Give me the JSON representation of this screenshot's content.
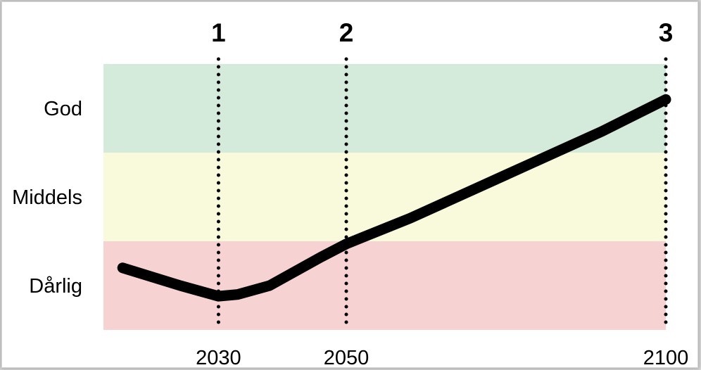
{
  "chart_data": {
    "type": "line",
    "title": "",
    "xlabel": "",
    "ylabel": "",
    "xlim": [
      2012,
      2100
    ],
    "x_ticks": [
      {
        "value": 2030,
        "label": "2030"
      },
      {
        "value": 2050,
        "label": "2050"
      },
      {
        "value": 2100,
        "label": "2100"
      }
    ],
    "y_categories": [
      "Dårlig",
      "Middels",
      "God"
    ],
    "ylim": [
      0,
      3
    ],
    "bands": [
      {
        "label": "God",
        "from": 2,
        "to": 3,
        "color": "#d4eadb"
      },
      {
        "label": "Middels",
        "from": 1,
        "to": 2,
        "color": "#f9f9dc"
      },
      {
        "label": "Dårlig",
        "from": 0,
        "to": 1,
        "color": "#f7d2d2"
      }
    ],
    "markers": [
      {
        "label": "1",
        "x": 2030
      },
      {
        "label": "2",
        "x": 2050
      },
      {
        "label": "3",
        "x": 2100
      }
    ],
    "series": [
      {
        "color": "#000000",
        "x": [
          2015,
          2024,
          2030,
          2033,
          2038,
          2046,
          2050,
          2060,
          2075,
          2090,
          2100
        ],
        "y": [
          0.7,
          0.5,
          0.38,
          0.4,
          0.5,
          0.82,
          0.97,
          1.26,
          1.75,
          2.24,
          2.6
        ]
      }
    ]
  }
}
